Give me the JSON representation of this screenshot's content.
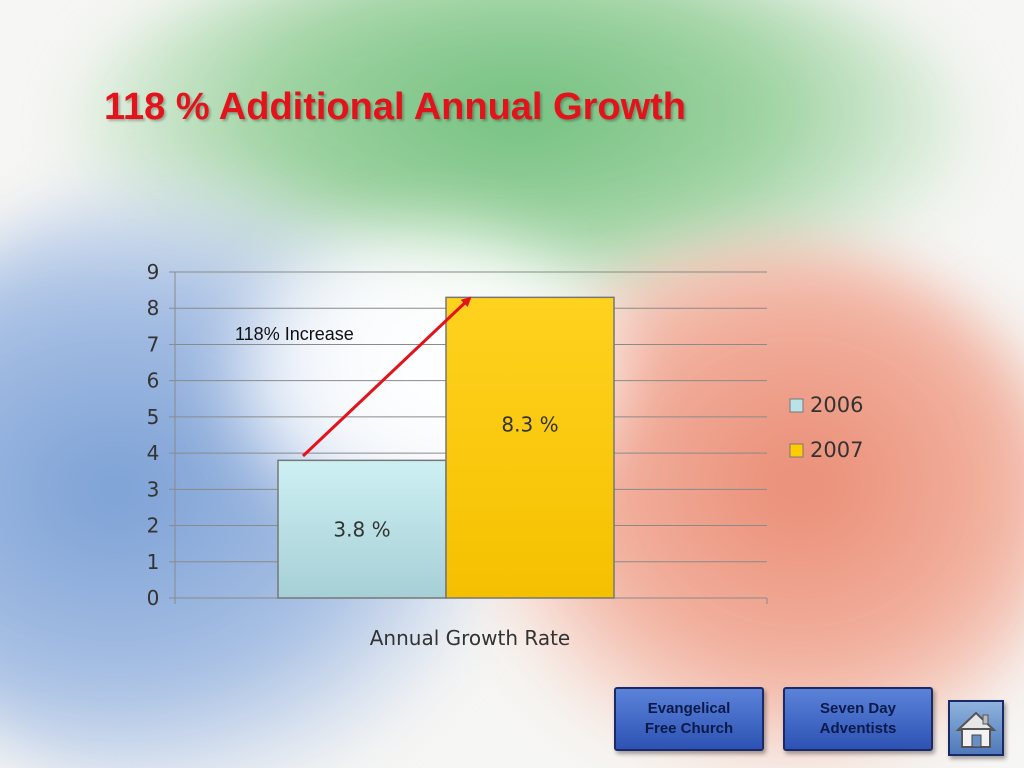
{
  "slide": {
    "title": "118 % Additional Annual Growth",
    "annotation": "118% Increase"
  },
  "colors": {
    "title": "#e3121b",
    "arrow": "#e3121b",
    "series_2006": "#b9e3e8",
    "series_2007": "#ffcc00"
  },
  "nav": {
    "evangelical_label": "Evangelical\nFree Church",
    "adventists_label": "Seven Day\nAdventists",
    "home_icon": "house-icon"
  },
  "chart_data": {
    "type": "bar",
    "categories": [
      "Annual Growth Rate"
    ],
    "series": [
      {
        "name": "2006",
        "values": [
          3.8
        ],
        "label": "3.8 %"
      },
      {
        "name": "2007",
        "values": [
          8.3
        ],
        "label": "8.3 %"
      }
    ],
    "xlabel": "Annual Growth Rate",
    "ylabel": "",
    "ylim": [
      0,
      9
    ],
    "yticks": [
      0,
      1,
      2,
      3,
      4,
      5,
      6,
      7,
      8,
      9
    ],
    "grid": true,
    "legend": "right"
  }
}
